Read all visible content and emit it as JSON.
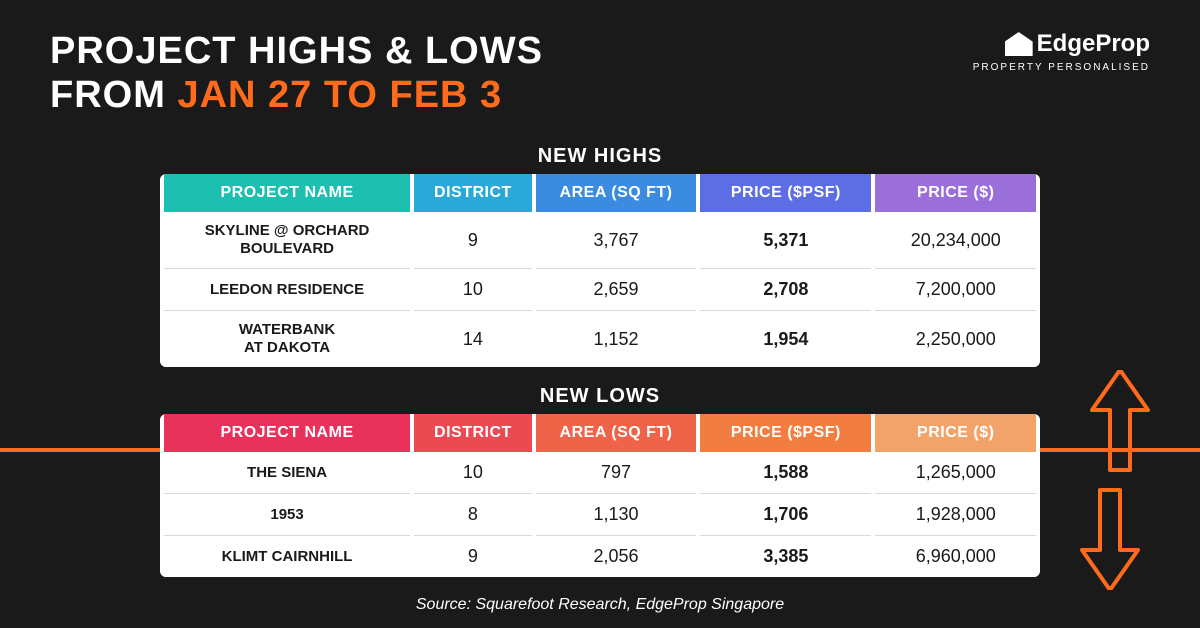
{
  "title_line1": "PROJECT HIGHS & LOWS",
  "title_line2a": "FROM ",
  "title_line2b": "JAN 27 TO FEB 3",
  "logo_text": "EdgeProp",
  "logo_tagline": "PROPERTY PERSONALISED",
  "highs": {
    "label": "NEW HIGHS",
    "header_colors": {
      "name": "#1dbfb0",
      "district": "#2aa9d8",
      "area": "#3b8ce0",
      "psf": "#5d6de3",
      "price": "#9b6fd9"
    },
    "columns": [
      "PROJECT NAME",
      "DISTRICT",
      "AREA (SQ FT)",
      "PRICE ($PSF)",
      "PRICE ($)"
    ],
    "rows": [
      {
        "name": "SKYLINE @ ORCHARD BOULEVARD",
        "district": "9",
        "area": "3,767",
        "psf": "5,371",
        "price": "20,234,000"
      },
      {
        "name": "LEEDON RESIDENCE",
        "district": "10",
        "area": "2,659",
        "psf": "2,708",
        "price": "7,200,000"
      },
      {
        "name": "WATERBANK AT DAKOTA",
        "district": "14",
        "area": "1,152",
        "psf": "1,954",
        "price": "2,250,000"
      }
    ]
  },
  "lows": {
    "label": "NEW LOWS",
    "header_colors": {
      "name": "#e8315b",
      "district": "#ec4a52",
      "area": "#ef6449",
      "psf": "#f17e40",
      "price": "#f2a36a"
    },
    "columns": [
      "PROJECT NAME",
      "DISTRICT",
      "AREA (SQ FT)",
      "PRICE ($PSF)",
      "PRICE ($)"
    ],
    "rows": [
      {
        "name": "THE SIENA",
        "district": "10",
        "area": "797",
        "psf": "1,588",
        "price": "1,265,000"
      },
      {
        "name": "1953",
        "district": "8",
        "area": "1,130",
        "psf": "1,706",
        "price": "1,928,000"
      },
      {
        "name": "KLIMT CAIRNHILL",
        "district": "9",
        "area": "2,056",
        "psf": "3,385",
        "price": "6,960,000"
      }
    ]
  },
  "source": "Source: Squarefoot Research, EdgeProp Singapore",
  "accent_color": "#ff6b1a"
}
